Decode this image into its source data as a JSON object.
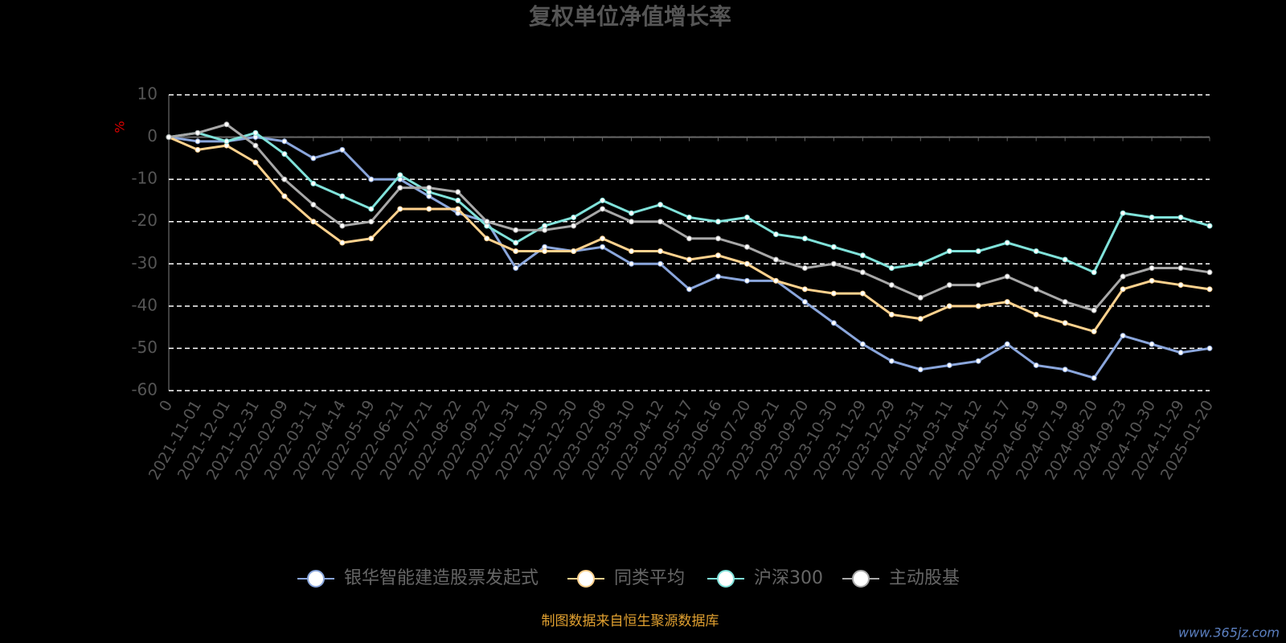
{
  "chart_data": {
    "type": "line",
    "title": "复权单位净值增长率",
    "y_label": "%",
    "categories": [
      "0",
      "2021-11-01",
      "2021-12-01",
      "2021-12-31",
      "2022-02-09",
      "2022-03-11",
      "2022-04-14",
      "2022-05-19",
      "2022-06-21",
      "2022-07-21",
      "2022-08-22",
      "2022-09-22",
      "2022-10-31",
      "2022-11-30",
      "2022-12-30",
      "2023-02-08",
      "2023-03-10",
      "2023-04-12",
      "2023-05-17",
      "2023-06-16",
      "2023-07-20",
      "2023-08-21",
      "2023-09-20",
      "2023-10-30",
      "2023-11-29",
      "2023-12-29",
      "2024-01-31",
      "2024-03-11",
      "2024-04-12",
      "2024-05-17",
      "2024-06-19",
      "2024-07-19",
      "2024-08-20",
      "2024-09-23",
      "2024-10-30",
      "2024-11-29",
      "2025-01-20"
    ],
    "series": [
      {
        "name": "银华智能建造股票发起式",
        "color": "#8aa6dc",
        "values": [
          0,
          -1,
          -1,
          0,
          -1,
          -5,
          -3,
          -10,
          -10,
          -14,
          -18,
          -20,
          -31,
          -26,
          -27,
          -26,
          -30,
          -30,
          -36,
          -33,
          -34,
          -34,
          -39,
          -44,
          -49,
          -53,
          -55,
          -54,
          -53,
          -49,
          -54,
          -55,
          -57,
          -47,
          -49,
          -51,
          -50
        ]
      },
      {
        "name": "同类平均",
        "color": "#ffd28e",
        "values": [
          0,
          -3,
          -2,
          -6,
          -14,
          -20,
          -25,
          -24,
          -17,
          -17,
          -17,
          -24,
          -27,
          -27,
          -27,
          -24,
          -27,
          -27,
          -29,
          -28,
          -30,
          -34,
          -36,
          -37,
          -37,
          -42,
          -43,
          -40,
          -40,
          -39,
          -42,
          -44,
          -46,
          -36,
          -34,
          -35,
          -36
        ]
      },
      {
        "name": "沪深300",
        "color": "#80e2da",
        "values": [
          0,
          1,
          -1,
          1,
          -4,
          -11,
          -14,
          -17,
          -9,
          -13,
          -15,
          -21,
          -25,
          -21,
          -19,
          -15,
          -18,
          -16,
          -19,
          -20,
          -19,
          -23,
          -24,
          -26,
          -28,
          -31,
          -30,
          -27,
          -27,
          -25,
          -27,
          -29,
          -32,
          -18,
          -19,
          -19,
          -21
        ]
      },
      {
        "name": "主动股基",
        "color": "#a8a8a8",
        "values": [
          0,
          1,
          3,
          -2,
          -10,
          -16,
          -21,
          -20,
          -12,
          -12,
          -13,
          -20,
          -22,
          -22,
          -21,
          -17,
          -20,
          -20,
          -24,
          -24,
          -26,
          -29,
          -31,
          -30,
          -32,
          -35,
          -38,
          -35,
          -35,
          -33,
          -36,
          -39,
          -41,
          -33,
          -31,
          -31,
          -32
        ]
      }
    ],
    "ylim": [
      -60,
      10
    ],
    "yticks": [
      -60,
      -50,
      -40,
      -30,
      -20,
      -10,
      0,
      10
    ],
    "grid": true,
    "footer": "制图数据来自恒生聚源数据库",
    "watermark": "www.365jz.com"
  }
}
